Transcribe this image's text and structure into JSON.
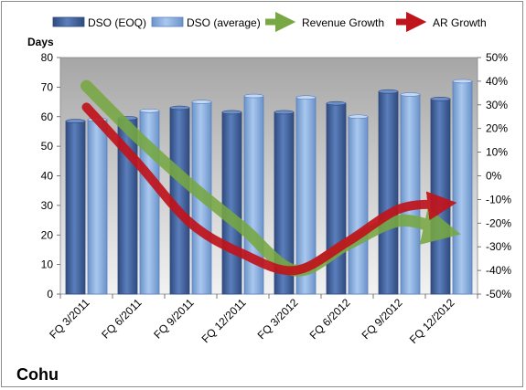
{
  "company": "Cohu",
  "colors": {
    "dso_eoq": "#4a6aa5",
    "dso_avg": "#8fb4e3",
    "revenue_growth": "#77a843",
    "ar_growth": "#c0141c",
    "plot_top": "#a6a6a6",
    "plot_bottom": "#f2f2f2"
  },
  "chart_data": {
    "type": "bar",
    "categories": [
      "FQ 3/2011",
      "FQ 6/2011",
      "FQ 9/2011",
      "FQ 12/2011",
      "FQ 3/2012",
      "FQ 6/2012",
      "FQ 9/2012",
      "FQ 12/2012"
    ],
    "series": [
      {
        "name": "DSO (EOQ)",
        "type": "bar",
        "axis": "left",
        "values": [
          58.5,
          59.5,
          63,
          61.5,
          61.5,
          64.5,
          68.5,
          66
        ]
      },
      {
        "name": "DSO (average)",
        "type": "bar",
        "axis": "left",
        "values": [
          59,
          62,
          65,
          67,
          66.5,
          60,
          67.5,
          72
        ]
      },
      {
        "name": "Revenue Growth",
        "type": "line",
        "axis": "right",
        "values": [
          38,
          16,
          -4,
          -22,
          -40,
          -29,
          -19,
          -23
        ]
      },
      {
        "name": "AR Growth",
        "type": "line",
        "axis": "right",
        "values": [
          29,
          5,
          -20,
          -33,
          -40,
          -28,
          -14,
          -12
        ]
      }
    ],
    "ylabel": "Days",
    "ylim": [
      0,
      80
    ],
    "yticks": [
      "0",
      "10",
      "20",
      "30",
      "40",
      "50",
      "60",
      "70",
      "80"
    ],
    "y2lim": [
      -50,
      50
    ],
    "y2ticks": [
      "-50%",
      "-40%",
      "-30%",
      "-20%",
      "-10%",
      "0%",
      "10%",
      "20%",
      "30%",
      "40%",
      "50%"
    ],
    "legend_position": "top",
    "grid": false
  }
}
